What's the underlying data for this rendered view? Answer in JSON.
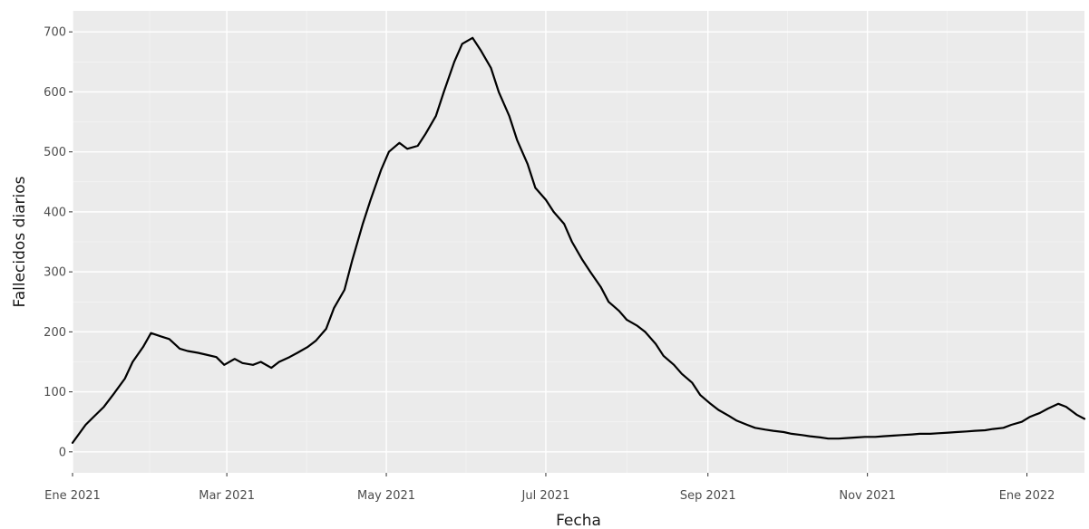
{
  "chart_data": {
    "type": "line",
    "title": "",
    "xlabel": "Fecha",
    "ylabel": "Fallecidos diarios",
    "x_axis": {
      "type": "date",
      "range": [
        "2021-01-01",
        "2022-01-23"
      ],
      "ticks": [
        {
          "date": "2021-01-01",
          "label": "Ene 2021"
        },
        {
          "date": "2021-03-01",
          "label": "Mar 2021"
        },
        {
          "date": "2021-05-01",
          "label": "May 2021"
        },
        {
          "date": "2021-07-01",
          "label": "Jul 2021"
        },
        {
          "date": "2021-09-01",
          "label": "Sep 2021"
        },
        {
          "date": "2021-11-01",
          "label": "Nov 2021"
        },
        {
          "date": "2022-01-01",
          "label": "Ene 2022"
        }
      ]
    },
    "y_axis": {
      "range": [
        -35,
        735
      ],
      "ticks": [
        0,
        100,
        200,
        300,
        400,
        500,
        600,
        700
      ]
    },
    "grid": true,
    "legend": "none",
    "colors": {
      "panel": "#ebebeb",
      "grid_major": "#ffffff",
      "line": "#000000"
    },
    "series": [
      {
        "x": [
          "2021-01-01",
          "2021-01-06",
          "2021-01-09",
          "2021-01-13",
          "2021-01-17",
          "2021-01-21",
          "2021-01-24",
          "2021-01-28",
          "2021-01-31",
          "2021-02-04",
          "2021-02-07",
          "2021-02-11",
          "2021-02-14",
          "2021-02-18",
          "2021-02-21",
          "2021-02-25",
          "2021-02-28",
          "2021-03-04",
          "2021-03-07",
          "2021-03-11",
          "2021-03-14",
          "2021-03-18",
          "2021-03-21",
          "2021-03-25",
          "2021-03-28",
          "2021-04-01",
          "2021-04-04",
          "2021-04-08",
          "2021-04-11",
          "2021-04-15",
          "2021-04-18",
          "2021-04-22",
          "2021-04-25",
          "2021-04-29",
          "2021-05-02",
          "2021-05-06",
          "2021-05-09",
          "2021-05-13",
          "2021-05-16",
          "2021-05-20",
          "2021-05-23",
          "2021-05-27",
          "2021-05-30",
          "2021-06-03",
          "2021-06-06",
          "2021-06-10",
          "2021-06-13",
          "2021-06-17",
          "2021-06-20",
          "2021-06-24",
          "2021-06-27",
          "2021-07-01",
          "2021-07-04",
          "2021-07-08",
          "2021-07-11",
          "2021-07-15",
          "2021-07-18",
          "2021-07-22",
          "2021-07-25",
          "2021-07-29",
          "2021-08-01",
          "2021-08-05",
          "2021-08-08",
          "2021-08-12",
          "2021-08-15",
          "2021-08-19",
          "2021-08-22",
          "2021-08-26",
          "2021-08-29",
          "2021-09-02",
          "2021-09-05",
          "2021-09-09",
          "2021-09-12",
          "2021-09-16",
          "2021-09-19",
          "2021-09-23",
          "2021-09-26",
          "2021-09-30",
          "2021-10-03",
          "2021-10-07",
          "2021-10-10",
          "2021-10-14",
          "2021-10-17",
          "2021-10-21",
          "2021-10-24",
          "2021-10-28",
          "2021-10-31",
          "2021-11-04",
          "2021-11-07",
          "2021-11-11",
          "2021-11-14",
          "2021-11-18",
          "2021-11-21",
          "2021-11-25",
          "2021-11-28",
          "2021-12-02",
          "2021-12-05",
          "2021-12-09",
          "2021-12-12",
          "2021-12-16",
          "2021-12-19",
          "2021-12-23",
          "2021-12-26",
          "2021-12-30",
          "2022-01-02",
          "2022-01-06",
          "2022-01-09",
          "2022-01-13",
          "2022-01-16",
          "2022-01-20",
          "2022-01-23"
        ],
        "y": [
          15,
          45,
          58,
          75,
          98,
          122,
          150,
          175,
          198,
          192,
          188,
          172,
          168,
          165,
          162,
          158,
          145,
          155,
          148,
          145,
          150,
          140,
          150,
          158,
          165,
          175,
          185,
          205,
          240,
          270,
          320,
          380,
          420,
          470,
          500,
          515,
          505,
          510,
          530,
          560,
          600,
          650,
          680,
          690,
          670,
          640,
          600,
          560,
          520,
          480,
          440,
          420,
          400,
          380,
          350,
          320,
          300,
          275,
          250,
          235,
          220,
          210,
          200,
          180,
          160,
          145,
          130,
          115,
          95,
          80,
          70,
          60,
          52,
          45,
          40,
          37,
          35,
          33,
          30,
          28,
          26,
          24,
          22,
          22,
          23,
          24,
          25,
          25,
          26,
          27,
          28,
          29,
          30,
          30,
          31,
          32,
          33,
          34,
          35,
          36,
          38,
          40,
          45,
          50,
          58,
          65,
          72,
          80,
          75,
          62,
          55
        ]
      }
    ]
  }
}
